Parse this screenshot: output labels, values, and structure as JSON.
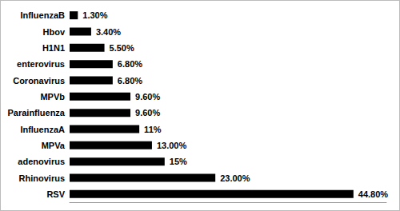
{
  "chart_data": {
    "type": "bar",
    "orientation": "horizontal",
    "categories": [
      "InfluenzaB",
      "Hbov",
      "H1N1",
      "enterovirus",
      "Coronavirus",
      "MPVb",
      "Parainfluenza",
      "InfluenzaA",
      "MPVa",
      "adenovirus",
      "Rhinovirus",
      "RSV"
    ],
    "values": [
      1.3,
      3.4,
      5.5,
      6.8,
      6.8,
      9.6,
      9.6,
      11,
      13,
      15,
      23,
      44.8
    ],
    "value_labels": [
      "1.30%",
      "3.40%",
      "5.50%",
      "6.80%",
      "6.80%",
      "9.60%",
      "9.60%",
      "11%",
      "13.00%",
      "15%",
      "23.00%",
      "44.80%"
    ],
    "color": "#000000",
    "xlim": [
      0,
      50
    ],
    "grid": false,
    "data_labels": true,
    "tick_labels": "y"
  }
}
